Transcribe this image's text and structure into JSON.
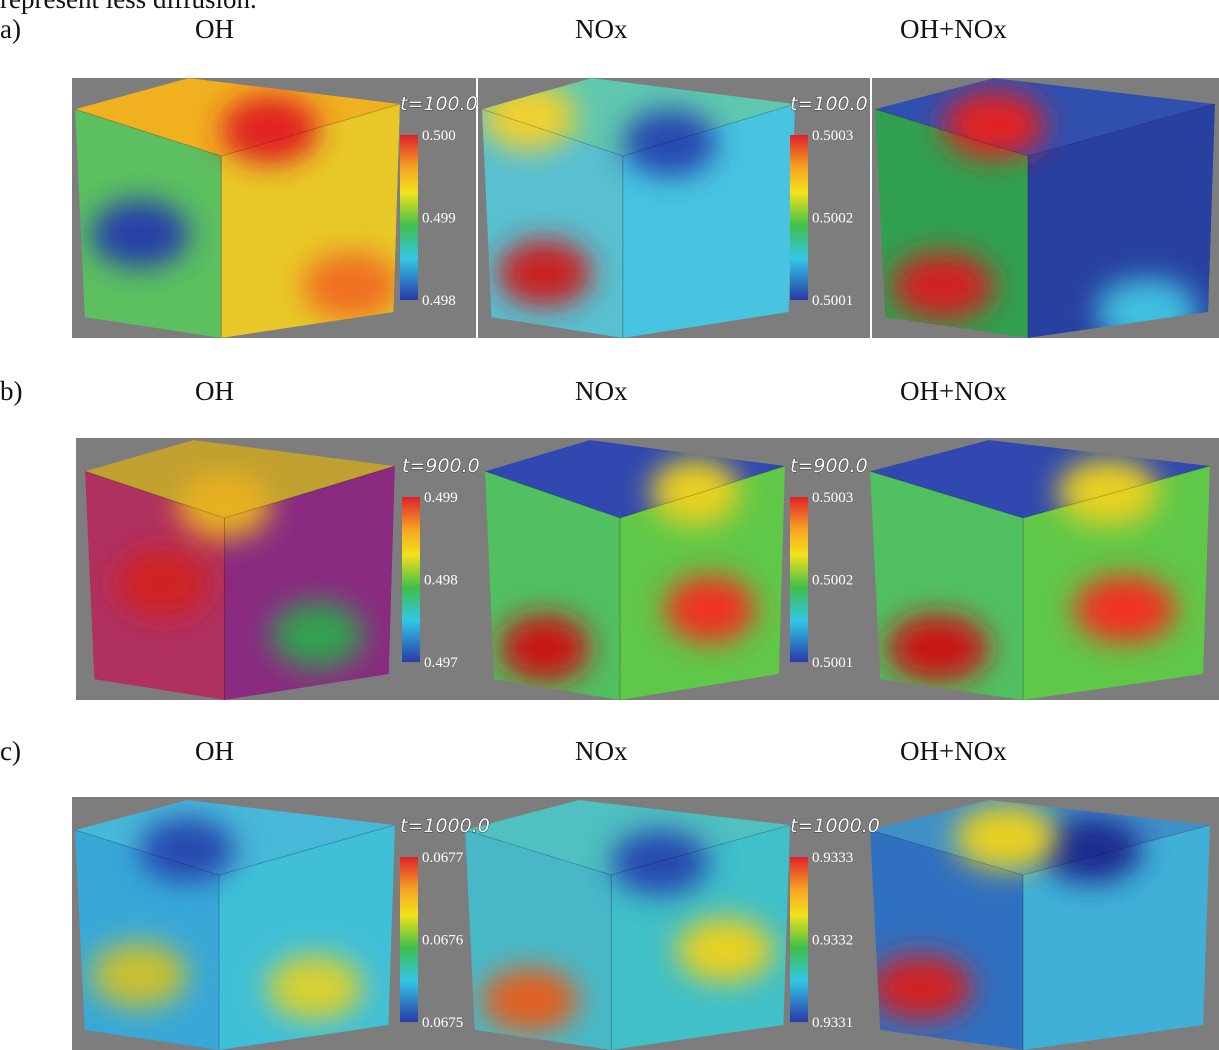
{
  "caption_fragment": "represent less diffusion.",
  "rows": [
    {
      "label": "a)",
      "columns": [
        "OH",
        "NOx",
        "OH+NOx"
      ],
      "colorbars": [
        {
          "time": "t=100.0",
          "ticks": [
            "0.500",
            "0.499",
            "0.498"
          ]
        },
        {
          "time": "t=100.0",
          "ticks": [
            "0.5003",
            "0.5002",
            "0.5001"
          ]
        }
      ]
    },
    {
      "label": "b)",
      "columns": [
        "OH",
        "NOx",
        "OH+NOx"
      ],
      "colorbars": [
        {
          "time": "t=900.0",
          "ticks": [
            "0.499",
            "0.498",
            "0.497"
          ]
        },
        {
          "time": "t=900.0",
          "ticks": [
            "0.5003",
            "0.5002",
            "0.5001"
          ]
        }
      ]
    },
    {
      "label": "c)",
      "columns": [
        "OH",
        "NOx",
        "OH+NOx"
      ],
      "colorbars": [
        {
          "time": "t=1000.0",
          "ticks": [
            "0.0677",
            "0.0676",
            "0.0675"
          ]
        },
        {
          "time": "t=1000.0",
          "ticks": [
            "0.9333",
            "0.9332",
            "0.9331"
          ]
        }
      ]
    }
  ]
}
